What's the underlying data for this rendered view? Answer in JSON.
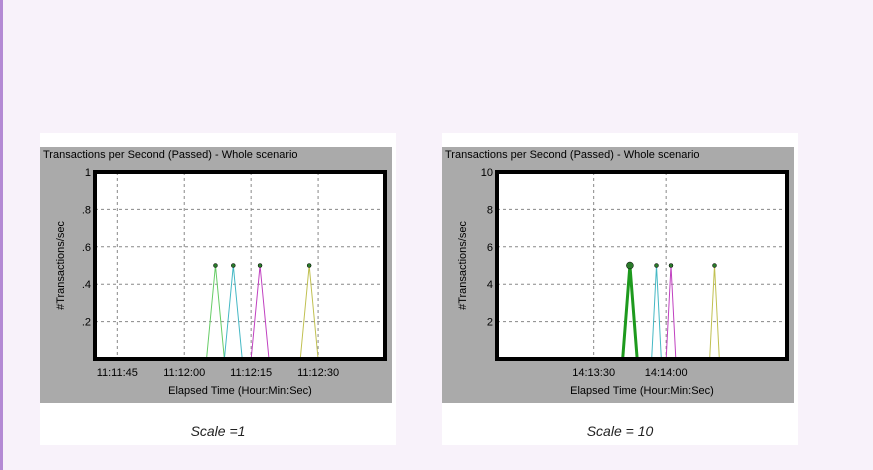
{
  "charts": [
    {
      "caption": "Scale =1",
      "chart_data": {
        "type": "line",
        "title": "Transactions per Second (Passed) - Whole scenario",
        "xlabel": "Elapsed Time (Hour:Min:Sec)",
        "ylabel": "#Transactions/sec",
        "ylim": [
          0,
          1
        ],
        "xlim_seconds_of_day": [
          40300,
          40365
        ],
        "y_ticks": [
          ".2",
          ".4",
          ".6",
          ".8",
          "1"
        ],
        "y_tick_values": [
          0.2,
          0.4,
          0.6,
          0.8,
          1
        ],
        "x_ticks": [
          "11:11:45",
          "11:12:00",
          "11:12:15",
          "11:12:30"
        ],
        "grid": true,
        "series": [
          {
            "color": "#66cc66",
            "stroke": 1,
            "x": [
              "11:12:05",
              "11:12:07",
              "11:12:09"
            ],
            "y": [
              0,
              0.5,
              0
            ]
          },
          {
            "color": "#44b8c4",
            "stroke": 1,
            "x": [
              "11:12:09",
              "11:12:11",
              "11:12:13"
            ],
            "y": [
              0,
              0.5,
              0
            ]
          },
          {
            "color": "#c040c0",
            "stroke": 1,
            "x": [
              "11:12:15",
              "11:12:17",
              "11:12:19"
            ],
            "y": [
              0,
              0.5,
              0
            ]
          },
          {
            "color": "#c0c050",
            "stroke": 1,
            "x": [
              "11:12:26",
              "11:12:28",
              "11:12:30"
            ],
            "y": [
              0,
              0.5,
              0
            ]
          }
        ]
      }
    },
    {
      "caption": "Scale = 10",
      "chart_data": {
        "type": "line",
        "title": "Transactions per Second (Passed) - Whole scenario",
        "xlabel": "Elapsed Time (Hour:Min:Sec)",
        "ylabel": "#Transactions/sec",
        "ylim": [
          0,
          10
        ],
        "xlim_seconds_of_day": [
          51170,
          51290
        ],
        "y_ticks": [
          "2",
          "4",
          "6",
          "8",
          "10"
        ],
        "y_tick_values": [
          2,
          4,
          6,
          8,
          10
        ],
        "x_ticks": [
          "14:13:30",
          "14:14:00"
        ],
        "grid": true,
        "series": [
          {
            "color": "#1e9a1e",
            "stroke": 3,
            "x": [
              "14:13:42",
              "14:13:45",
              "14:13:48"
            ],
            "y": [
              0,
              5,
              0
            ]
          },
          {
            "color": "#44b8c4",
            "stroke": 1,
            "x": [
              "14:13:54",
              "14:13:56",
              "14:13:58"
            ],
            "y": [
              0,
              5,
              0
            ]
          },
          {
            "color": "#c040c0",
            "stroke": 1,
            "x": [
              "14:14:00",
              "14:14:02",
              "14:14:04"
            ],
            "y": [
              0,
              5,
              0
            ]
          },
          {
            "color": "#c0c050",
            "stroke": 1,
            "x": [
              "14:14:18",
              "14:14:20",
              "14:14:22"
            ],
            "y": [
              0,
              5,
              0
            ]
          }
        ]
      }
    }
  ]
}
